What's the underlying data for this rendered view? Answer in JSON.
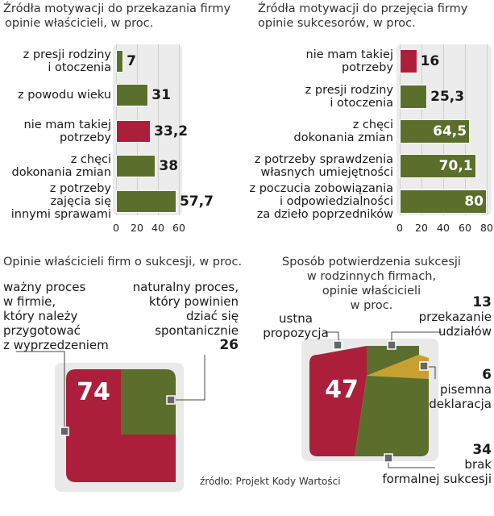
{
  "colors": {
    "olive": "#5b6e2b",
    "red": "#ab1f3a",
    "gold": "#c8a030",
    "panel": "#ececec",
    "grid": "#cfcfcf"
  },
  "source": "źródło: Projekt Kody Wartości",
  "chart_data": [
    {
      "type": "bar",
      "title_lines": [
        "Źródła motywacji do przekazania firmy",
        "opinie właścicieli, w proc."
      ],
      "categories": [
        [
          "z presji rodziny",
          "i otoczenia"
        ],
        [
          "z powodu wieku"
        ],
        [
          "nie mam takiej",
          "potrzeby"
        ],
        [
          "z chęci",
          "dokonania zmian"
        ],
        [
          "z potrzeby",
          "zajęcia się",
          "innymi sprawami"
        ]
      ],
      "values": [
        7,
        31,
        33.2,
        38,
        57.7
      ],
      "value_labels": [
        "7",
        "31",
        "33,2",
        "38",
        "57,7"
      ],
      "highlight": [
        false,
        false,
        true,
        false,
        false
      ],
      "xlim": [
        0,
        60
      ],
      "ticks": [
        "0",
        "20",
        "40",
        "60"
      ]
    },
    {
      "type": "bar",
      "title_lines": [
        "Źródła motywacji  do przejęcia firmy",
        "opinie sukcesorów, w proc."
      ],
      "categories": [
        [
          "nie mam takiej",
          "potrzeby"
        ],
        [
          "z presji rodziny",
          "i otoczenia"
        ],
        [
          "z chęci",
          "dokonania zmian"
        ],
        [
          "z potrzeby sprawdzenia",
          "własnych umiejętności"
        ],
        [
          "z poczucia zobowiązania",
          "i odpowiedzialności",
          "za dzieło poprzedników"
        ]
      ],
      "values": [
        16,
        25.3,
        64.5,
        70.1,
        80
      ],
      "value_labels": [
        "16",
        "25,3",
        "64,5",
        "70,1",
        "80"
      ],
      "highlight": [
        true,
        false,
        false,
        false,
        false
      ],
      "xlim": [
        0,
        80
      ],
      "ticks": [
        "0",
        "20",
        "40",
        "60",
        "80"
      ]
    },
    {
      "type": "pie",
      "title_lines": [
        "Opinie właścicieli  firm o sukcesji, w proc."
      ],
      "slices": [
        {
          "label_lines": [
            "ważny proces",
            "w firmie,",
            "który należy",
            "przygotować",
            "z wyprzedzeniem"
          ],
          "value": 74,
          "value_label": "74",
          "color": "#ab1f3a"
        },
        {
          "label_lines": [
            "naturalny proces,",
            "który powinien",
            "dziać się",
            "spontanicznie"
          ],
          "value": 26,
          "value_label": "26",
          "color": "#5b6e2b"
        }
      ]
    },
    {
      "type": "pie",
      "title_lines": [
        "Sposób potwierdzenia sukcesji",
        "w rodzinnych firmach,",
        "opinie właścicieli",
        "w proc."
      ],
      "slices": [
        {
          "label_lines": [
            "ustna",
            "propozycja"
          ],
          "value": 47,
          "value_label": "47",
          "color": "#ab1f3a"
        },
        {
          "label_lines": [
            "przekazanie",
            "udziałów"
          ],
          "value": 13,
          "value_label": "13",
          "color": "#5b6e2b"
        },
        {
          "label_lines": [
            "pisemna",
            "deklaracja"
          ],
          "value": 6,
          "value_label": "6",
          "color": "#c8a030"
        },
        {
          "label_lines": [
            "brak",
            "formalnej sukcesji"
          ],
          "value": 34,
          "value_label": "34",
          "color": "#5b6e2b"
        }
      ]
    }
  ]
}
